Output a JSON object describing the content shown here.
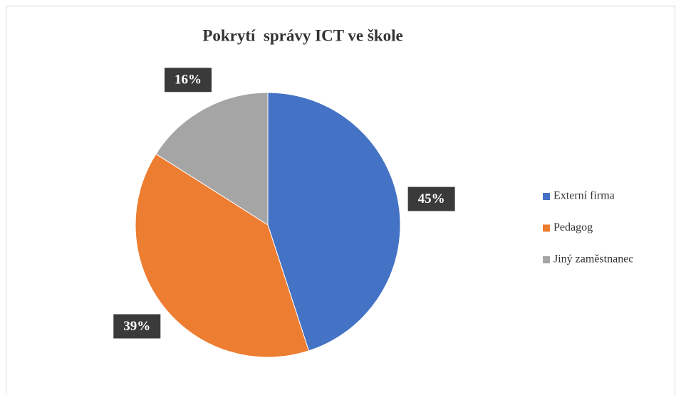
{
  "chart_data": {
    "type": "pie",
    "title": "Pokrytí  správy ICT ve škole",
    "categories": [
      "Externí firma",
      "Pedagog",
      "Jiný zaměstnanec"
    ],
    "values": [
      45,
      39,
      16
    ],
    "value_labels": [
      "45%",
      "39%",
      "16%"
    ],
    "colors": [
      "#4472c4",
      "#ed7d31",
      "#a5a5a5"
    ],
    "legend": "right"
  }
}
